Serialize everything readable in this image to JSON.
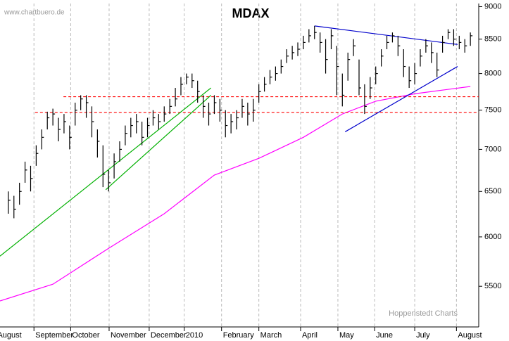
{
  "chart_data": {
    "type": "ohlc",
    "title": "MDAX",
    "source": "www.chartbuero.de",
    "credit": "Hoppenstedt Charts",
    "log_scale": true,
    "grid": true,
    "color": "#000000",
    "xlim": [
      -1.5,
      84.5
    ],
    "ylim": [
      5120,
      9050
    ],
    "yticks": [
      5500,
      6000,
      6500,
      7000,
      7500,
      8000,
      8500,
      9000
    ],
    "xticks": [
      {
        "value": -2.2,
        "label": "August"
      },
      {
        "value": 4.6,
        "label": "September"
      },
      {
        "value": 11.2,
        "label": "October"
      },
      {
        "value": 18.1,
        "label": "November"
      },
      {
        "value": 25.3,
        "label": "December"
      },
      {
        "value": 31.6,
        "label": "2010"
      },
      {
        "value": 38.3,
        "label": "February"
      },
      {
        "value": 45,
        "label": "March"
      },
      {
        "value": 52.5,
        "label": "April"
      },
      {
        "value": 59.2,
        "label": "May"
      },
      {
        "value": 65.8,
        "label": "June"
      },
      {
        "value": 73,
        "label": "July"
      },
      {
        "value": 80.5,
        "label": "August"
      }
    ],
    "high": [
      6500,
      6450,
      6600,
      6850,
      6800,
      7050,
      7250,
      7480,
      7520,
      7400,
      7450,
      7300,
      7600,
      7700,
      7700,
      7550,
      7250,
      7050,
      6750,
      6950,
      7100,
      7300,
      7400,
      7450,
      7350,
      7400,
      7500,
      7450,
      7550,
      7650,
      7800,
      7950,
      8000,
      8000,
      7900,
      7700,
      7600,
      7700,
      7650,
      7500,
      7450,
      7500,
      7650,
      7600,
      7650,
      7850,
      7950,
      8050,
      8100,
      8200,
      8350,
      8400,
      8450,
      8550,
      8650,
      8700,
      8600,
      8500,
      8650,
      8400,
      8000,
      8300,
      8500,
      8200,
      7850,
      7950,
      8100,
      8350,
      8550,
      8600,
      8550,
      8350,
      8100,
      8150,
      8350,
      8500,
      8450,
      8300,
      8550,
      8650,
      8650,
      8550,
      8500,
      8600
    ],
    "low": [
      6250,
      6200,
      6350,
      6600,
      6500,
      6800,
      7000,
      7250,
      7300,
      7100,
      7200,
      7000,
      7300,
      7500,
      7400,
      7150,
      6900,
      6550,
      6500,
      6650,
      6850,
      7050,
      7150,
      7200,
      7050,
      7150,
      7300,
      7250,
      7350,
      7450,
      7550,
      7700,
      7850,
      7800,
      7600,
      7400,
      7300,
      7450,
      7350,
      7150,
      7200,
      7250,
      7400,
      7300,
      7350,
      7600,
      7750,
      7850,
      7900,
      8000,
      8150,
      8200,
      8250,
      8350,
      8450,
      8500,
      8300,
      8000,
      8350,
      7700,
      7550,
      7900,
      8250,
      7700,
      7450,
      7650,
      7850,
      8100,
      8350,
      8450,
      8250,
      7950,
      7800,
      7850,
      8100,
      8300,
      8150,
      7950,
      8300,
      8500,
      8400,
      8350,
      8300,
      8400
    ],
    "close": [
      6400,
      6300,
      6500,
      6750,
      6650,
      6950,
      7150,
      7400,
      7450,
      7250,
      7350,
      7150,
      7500,
      7650,
      7600,
      7350,
      7100,
      6700,
      6600,
      6850,
      7000,
      7200,
      7300,
      7350,
      7150,
      7300,
      7400,
      7350,
      7450,
      7550,
      7650,
      7850,
      7950,
      7900,
      7750,
      7550,
      7450,
      7600,
      7500,
      7300,
      7350,
      7400,
      7550,
      7450,
      7500,
      7750,
      7850,
      7950,
      8000,
      8100,
      8250,
      8300,
      8350,
      8450,
      8550,
      8600,
      8450,
      8200,
      8550,
      8100,
      7700,
      8200,
      8400,
      7800,
      7550,
      7800,
      8000,
      8250,
      8450,
      8550,
      8400,
      8100,
      7900,
      8000,
      8250,
      8400,
      8300,
      8050,
      8450,
      8600,
      8500,
      8450,
      8400,
      8550
    ],
    "lines": [
      {
        "color": "#ff00ff",
        "dash": false,
        "x": [
          -1.5,
          8,
          18,
          28,
          37,
          45,
          53,
          60,
          66,
          73,
          83
        ],
        "values": [
          5360,
          5520,
          5880,
          6250,
          6690,
          6890,
          7150,
          7450,
          7620,
          7720,
          7820
        ]
      },
      {
        "color": "#ff0000",
        "dash": true,
        "x": [
          9.9,
          84.5
        ],
        "values": [
          7680,
          7680
        ]
      },
      {
        "color": "#ff0000",
        "dash": true,
        "x": [
          4.8,
          84.5
        ],
        "values": [
          7470,
          7470
        ]
      },
      {
        "color": "#00b000",
        "dash": false,
        "x": [
          -1.5,
          36.4
        ],
        "values": [
          5800,
          7800
        ]
      },
      {
        "color": "#00b000",
        "dash": false,
        "x": [
          17.5,
          36.4
        ],
        "values": [
          6520,
          7700
        ]
      },
      {
        "color": "#0000cc",
        "dash": false,
        "x": [
          55,
          80.7
        ],
        "values": [
          8700,
          8420
        ]
      },
      {
        "color": "#0000cc",
        "dash": false,
        "x": [
          60.5,
          80.7
        ],
        "values": [
          7220,
          8100
        ]
      }
    ]
  }
}
